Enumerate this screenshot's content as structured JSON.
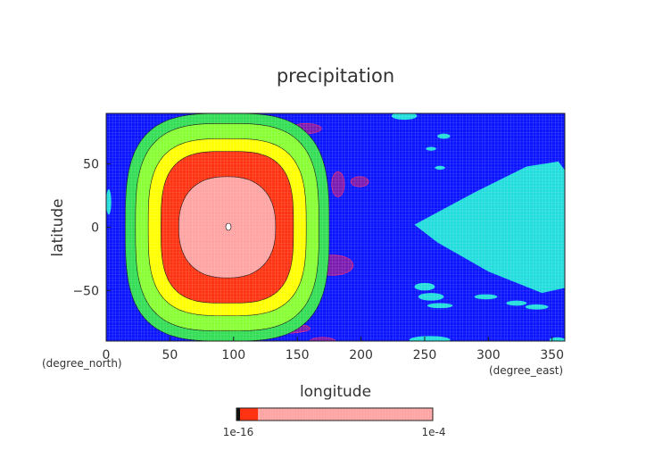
{
  "chart_data": {
    "type": "heatmap",
    "title": "precipitation",
    "xlabel": "longitude",
    "ylabel": "latitude",
    "x_unit": "(degree_east)",
    "y_unit": "(degree_north)",
    "xlim": [
      0,
      360
    ],
    "ylim": [
      -90,
      90
    ],
    "x_ticks": [
      "0",
      "50",
      "100",
      "150",
      "200",
      "250",
      "300",
      "350"
    ],
    "y_ticks": [
      "50",
      "0",
      "−50"
    ],
    "grid": true,
    "center": {
      "lon": 95,
      "lat": 0
    },
    "levels": [
      {
        "dx": 80,
        "dy": 90,
        "color": "#33dd55"
      },
      {
        "dx": 72,
        "dy": 82,
        "color": "#88ff33"
      },
      {
        "dx": 62,
        "dy": 70,
        "color": "#ffff00"
      },
      {
        "dx": 52,
        "dy": 60,
        "color": "#ff3311"
      },
      {
        "dx": 38,
        "dy": 40,
        "color": "#ffa3a3"
      }
    ],
    "colorbar": {
      "labels": [
        "1e-16",
        "1e-4"
      ],
      "colors": [
        "#111111",
        "#ff3311",
        "#ffa3a3"
      ]
    },
    "colors": {
      "background": "#0a14ff",
      "cyan": "#22dddd",
      "purple": "#7a1ab0",
      "grid": "#8899ff"
    }
  }
}
